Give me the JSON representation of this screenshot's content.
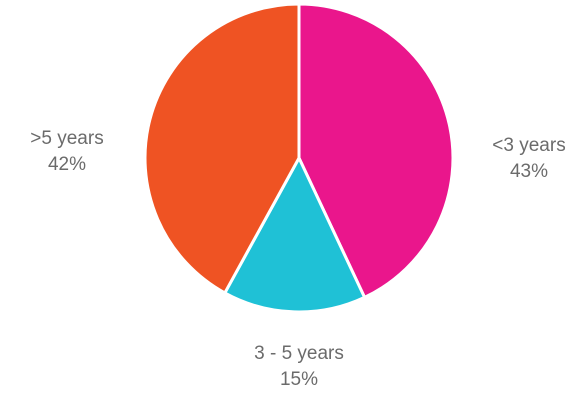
{
  "chart_data": {
    "type": "pie",
    "title": "",
    "slices": [
      {
        "label": "<3 years",
        "value": 43,
        "value_label": "43%",
        "color": "#EA168C"
      },
      {
        "label": "3 - 5 years",
        "value": 15,
        "value_label": "15%",
        "color": "#1FC1D6"
      },
      {
        "label": ">5 years",
        "value": 42,
        "value_label": "42%",
        "color": "#EF5323"
      }
    ],
    "start_direction": "12 o'clock",
    "order": "clockwise",
    "legend": "none",
    "slice_border_color": "#ffffff",
    "label_color": "#6b6b6b"
  }
}
